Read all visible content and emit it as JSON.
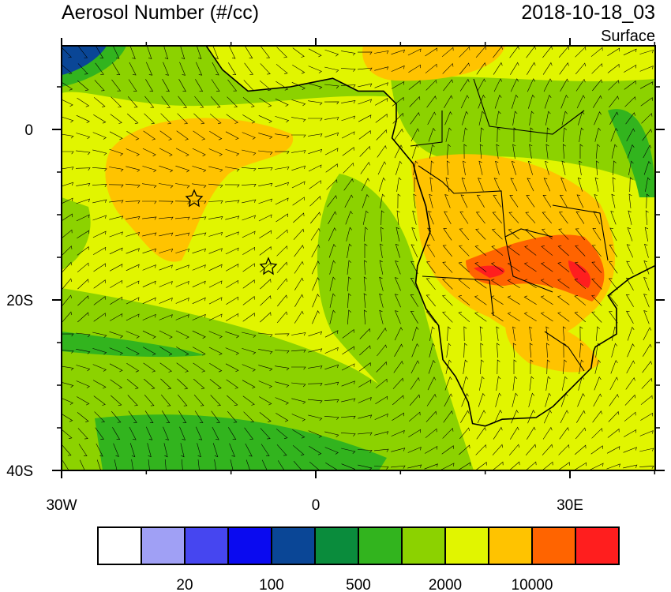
{
  "title": "Aerosol Number (#/cc)",
  "timestamp": "2018-10-18_03",
  "level": "Surface",
  "map": {
    "xticks": [
      {
        "value": -30,
        "label": "30W"
      },
      0,
      {
        "value": 30,
        "label": "30E"
      }
    ],
    "yticks": [
      0,
      {
        "value": -20,
        "label": "20S"
      },
      {
        "value": -40,
        "label": "40S"
      }
    ],
    "minor_xticks": [
      -20,
      -10,
      10,
      20,
      40
    ],
    "minor_yticks": [
      5,
      -5,
      -10,
      -15,
      -25,
      -30,
      -35
    ]
  },
  "colorbar": {
    "colors": [
      "#ffffff",
      "#a0a0f5",
      "#4646f0",
      "#0a0af0",
      "#0a4696",
      "#0a8c3c",
      "#32b41e",
      "#8cd200",
      "#e1f500",
      "#ffc300",
      "#ff6400",
      "#ff1e1e"
    ],
    "labels": [
      20,
      100,
      500,
      2000,
      10000
    ]
  }
}
